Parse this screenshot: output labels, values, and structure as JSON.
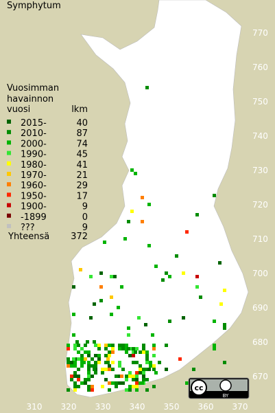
{
  "title": "Symphytum",
  "legend": {
    "header": [
      "Vuosimman",
      "havainnon",
      "vuosi"
    ],
    "count_header": "lkm",
    "rows": [
      {
        "label": "2015-",
        "count": "40",
        "color": "#006400"
      },
      {
        "label": "2010-",
        "count": "87",
        "color": "#008c00"
      },
      {
        "label": "2000-",
        "count": "74",
        "color": "#00b400"
      },
      {
        "label": "1990-",
        "count": "45",
        "color": "#33e633"
      },
      {
        "label": "1980-",
        "count": "41",
        "color": "#ffff00"
      },
      {
        "label": "1970-",
        "count": "21",
        "color": "#ffc800"
      },
      {
        "label": "1960-",
        "count": "29",
        "color": "#ff7f00"
      },
      {
        "label": "1950-",
        "count": "17",
        "color": "#ff2800"
      },
      {
        "label": "1900-",
        "count": "9",
        "color": "#c80000"
      },
      {
        "label": "-1899",
        "count": "0",
        "color": "#7a0000"
      },
      {
        "label": "???",
        "count": "9",
        "color": "#c0c0c0"
      }
    ],
    "total_label": "Yhteensä",
    "total": "372"
  },
  "axes": {
    "yticks": [
      770,
      760,
      750,
      740,
      730,
      720,
      710,
      700,
      690,
      680,
      670
    ],
    "xticks": [
      310,
      320,
      330,
      340,
      350,
      360,
      370
    ]
  },
  "badge": {
    "label": "BY"
  }
}
